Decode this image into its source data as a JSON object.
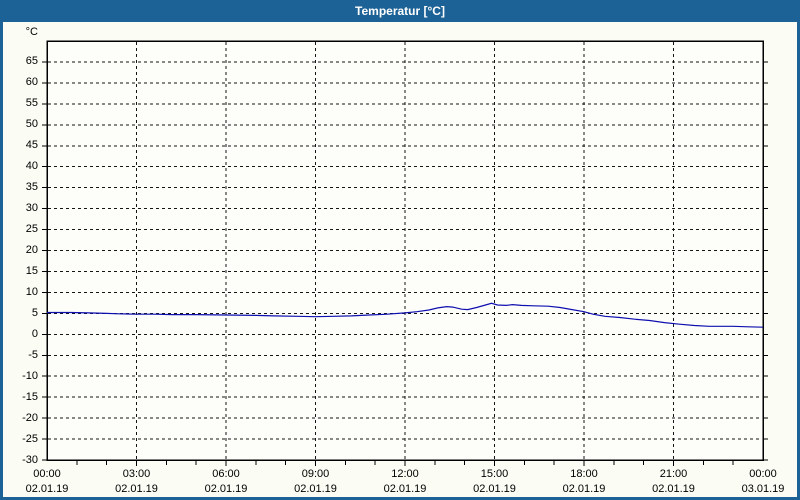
{
  "window": {
    "title": "Temperatur [°C]"
  },
  "colors": {
    "titlebar_bg": "#1d6296",
    "title_text": "#ffffff",
    "window_bg": "#fbfcf4",
    "plot_bg": "#fdfefa",
    "grid": "#141414",
    "axis": "#000000",
    "label_text": "#000000",
    "series_line": "#0e0eb0"
  },
  "chart_data": {
    "type": "line",
    "title": "Temperatur [°C]",
    "ylabel": "°C",
    "xlabel": "",
    "ylim": [
      -30,
      70
    ],
    "y_tick_step": 5,
    "y_tick_values": [
      65,
      60,
      55,
      50,
      45,
      40,
      35,
      30,
      25,
      20,
      15,
      10,
      5,
      0,
      -5,
      -10,
      -15,
      -20,
      -25,
      -30
    ],
    "y_unit_label": "°C",
    "grid": "dashed",
    "legend": "none",
    "x_axis": {
      "span_hours": 24,
      "minor_tick_hours": 1,
      "major_tick_hours": 3,
      "labels": [
        {
          "hour": 0,
          "time": "00:00",
          "date": "02.01.19"
        },
        {
          "hour": 3,
          "time": "03:00",
          "date": "02.01.19"
        },
        {
          "hour": 6,
          "time": "06:00",
          "date": "02.01.19"
        },
        {
          "hour": 9,
          "time": "09:00",
          "date": "02.01.19"
        },
        {
          "hour": 12,
          "time": "12:00",
          "date": "02.01.19"
        },
        {
          "hour": 15,
          "time": "15:00",
          "date": "02.01.19"
        },
        {
          "hour": 18,
          "time": "18:00",
          "date": "02.01.19"
        },
        {
          "hour": 21,
          "time": "21:00",
          "date": "02.01.19"
        },
        {
          "hour": 24,
          "time": "00:00",
          "date": "03.01.19"
        }
      ]
    },
    "series": [
      {
        "name": "Temperatur",
        "color": "#0e0eb0",
        "points_hour_degC": [
          [
            0,
            5.2
          ],
          [
            0.8,
            5.2
          ],
          [
            1.4,
            5.1
          ],
          [
            2,
            5.0
          ],
          [
            2.4,
            4.9
          ],
          [
            3,
            4.8
          ],
          [
            3.6,
            4.8
          ],
          [
            4.2,
            4.7
          ],
          [
            5,
            4.7
          ],
          [
            6,
            4.6
          ],
          [
            7,
            4.5
          ],
          [
            7.6,
            4.4
          ],
          [
            8.4,
            4.3
          ],
          [
            9,
            4.2
          ],
          [
            9.6,
            4.3
          ],
          [
            10.2,
            4.4
          ],
          [
            10.8,
            4.6
          ],
          [
            11.4,
            4.8
          ],
          [
            12,
            5.1
          ],
          [
            12.4,
            5.4
          ],
          [
            12.8,
            5.8
          ],
          [
            13.1,
            6.3
          ],
          [
            13.4,
            6.6
          ],
          [
            13.6,
            6.5
          ],
          [
            13.9,
            6.0
          ],
          [
            14.1,
            5.9
          ],
          [
            14.4,
            6.4
          ],
          [
            14.7,
            7.0
          ],
          [
            14.9,
            7.4
          ],
          [
            15.1,
            7.0
          ],
          [
            15.4,
            6.9
          ],
          [
            15.6,
            7.1
          ],
          [
            15.9,
            6.9
          ],
          [
            16.3,
            6.8
          ],
          [
            16.8,
            6.7
          ],
          [
            17.2,
            6.4
          ],
          [
            17.6,
            5.9
          ],
          [
            18,
            5.4
          ],
          [
            18.3,
            4.8
          ],
          [
            18.7,
            4.3
          ],
          [
            19.2,
            4.0
          ],
          [
            19.7,
            3.6
          ],
          [
            20.2,
            3.3
          ],
          [
            20.7,
            2.8
          ],
          [
            21.2,
            2.4
          ],
          [
            21.7,
            2.1
          ],
          [
            22.2,
            1.9
          ],
          [
            23,
            1.9
          ],
          [
            23.5,
            1.8
          ],
          [
            24,
            1.7
          ]
        ]
      }
    ]
  }
}
